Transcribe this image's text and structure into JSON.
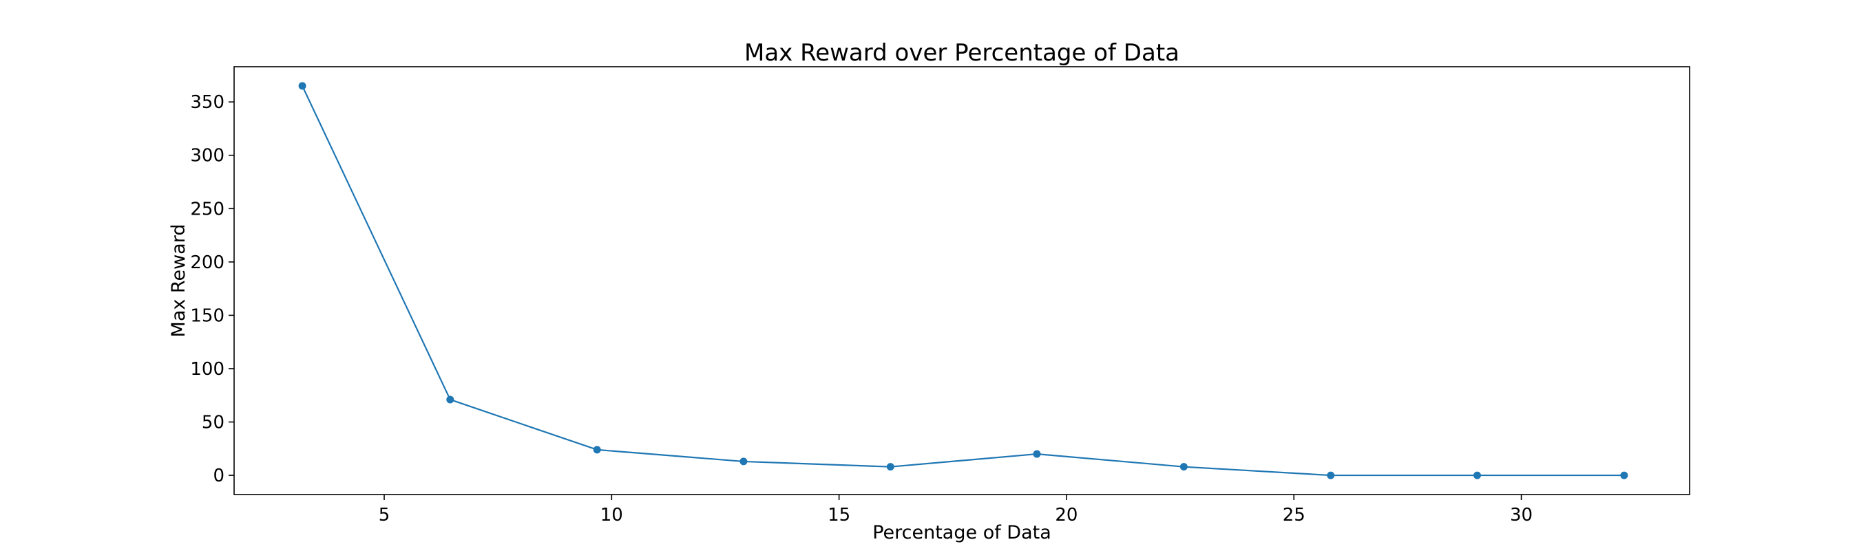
{
  "chart_data": {
    "type": "line",
    "title": "Max Reward over Percentage of Data",
    "xlabel": "Percentage of Data",
    "ylabel": "Max Reward",
    "xlim": [
      1.7,
      33.7
    ],
    "ylim": [
      -18,
      383
    ],
    "xticks": [
      5,
      10,
      15,
      20,
      25,
      30
    ],
    "yticks": [
      0,
      50,
      100,
      150,
      200,
      250,
      300,
      350
    ],
    "grid": false,
    "legend": "none",
    "series": [
      {
        "color": "#1f77b4",
        "marker": "circle",
        "x": [
          3.2,
          6.45,
          9.68,
          12.9,
          16.13,
          19.35,
          22.58,
          25.81,
          29.03,
          32.26
        ],
        "y": [
          365,
          71,
          24,
          13,
          8,
          20,
          8,
          0,
          0,
          0
        ]
      }
    ]
  }
}
